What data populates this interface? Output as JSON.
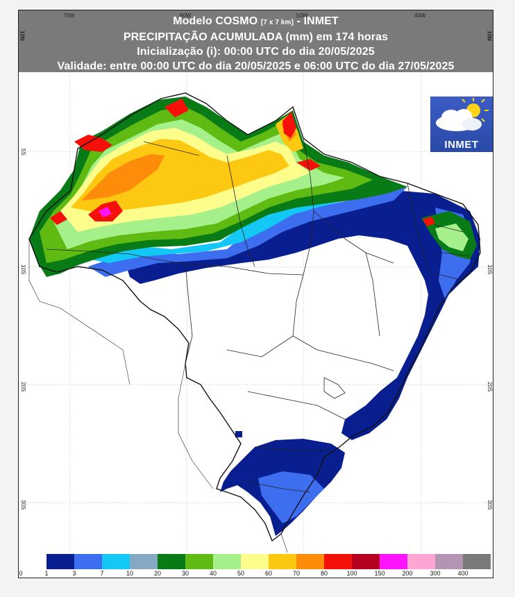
{
  "header": {
    "line1_main": "Modelo COSMO",
    "line1_small": "[7 x 7 km]",
    "line1_tail": "- INMET",
    "line2": "PRECIPITAÇÃO ACUMULADA (mm) em 174 horas",
    "line3": "Inicialização (i): 00:00 UTC do dia 20/05/2025",
    "line4": "Validade: entre 00:00 UTC do dia 20/05/2025 e 06:00 UTC do dia 27/05/2025"
  },
  "axes": {
    "lon_labels": [
      "70W",
      "60W",
      "50W",
      "40W"
    ],
    "lat_labels": [
      "10N",
      "5S",
      "10S",
      "20S",
      "30S"
    ]
  },
  "logo": {
    "text": "INMET",
    "icon": "cloud-sun-icon"
  },
  "legend": {
    "labels": [
      "0",
      "1",
      "3",
      "7",
      "10",
      "20",
      "30",
      "40",
      "50",
      "60",
      "70",
      "80",
      "100",
      "150",
      "200",
      "300",
      "400"
    ],
    "colors": [
      "#ffffff",
      "#0a1f8f",
      "#3d6ef0",
      "#14c8f5",
      "#86a9c3",
      "#087a16",
      "#5fba12",
      "#a6f08c",
      "#fdfd8c",
      "#fdc812",
      "#fd8c0a",
      "#f5110a",
      "#b5001f",
      "#fd14fd",
      "#fda6d3",
      "#b395b3",
      "#7a7a7a"
    ]
  }
}
